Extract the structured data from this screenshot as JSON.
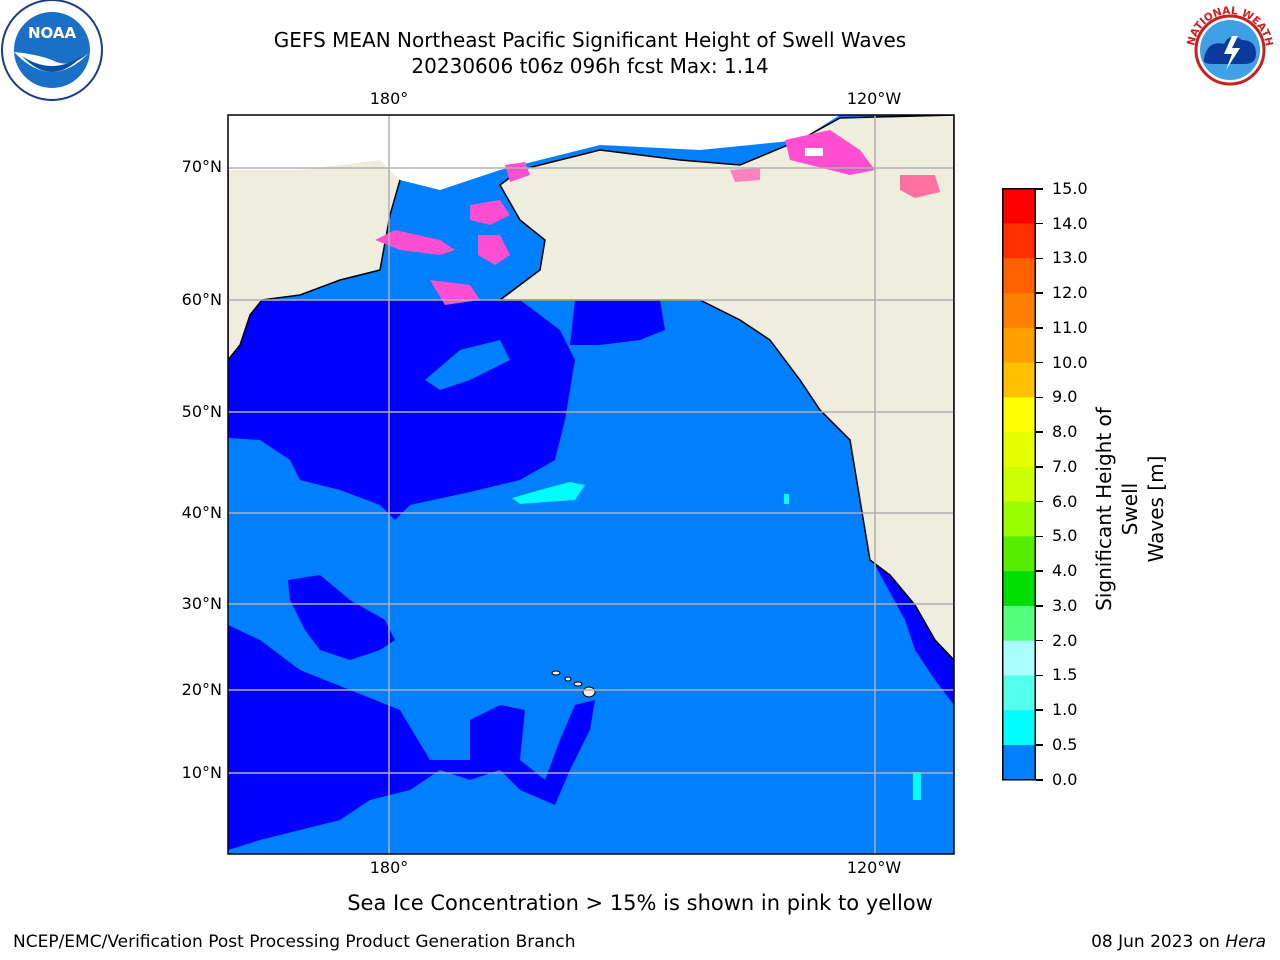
{
  "title_line1": "GEFS MEAN Northeast Pacific Significant Height of Swell Waves",
  "title_line2": "20230606 t06z 096h fcst   Max: 1.14",
  "lon_labels": [
    "180°",
    "120°W"
  ],
  "lat_labels": [
    "70°N",
    "60°N",
    "50°N",
    "40°N",
    "30°N",
    "20°N",
    "10°N"
  ],
  "colorbar": {
    "label": "Significant Height of Swell Waves [m]",
    "label_line1": "Significant Height of Swell",
    "label_line2": "Waves [m]",
    "ticks": [
      "15.0",
      "14.0",
      "13.0",
      "12.0",
      "11.0",
      "10.0",
      "9.0",
      "8.0",
      "7.0",
      "6.0",
      "5.0",
      "4.0",
      "3.0",
      "2.0",
      "1.5",
      "1.0",
      "0.5",
      "0.0"
    ],
    "colors": [
      "#ff0000",
      "#ff3000",
      "#ff6000",
      "#ff8000",
      "#ffa000",
      "#ffc000",
      "#ffff00",
      "#e6ff00",
      "#ccff00",
      "#99ff00",
      "#55ee00",
      "#00dd00",
      "#55ff80",
      "#aaffff",
      "#55ffee",
      "#00ffff",
      "#0080ff",
      "#0000ff"
    ]
  },
  "colors": {
    "land": "#efedde",
    "sea_low": "#0000ff",
    "sea_mid": "#0080ff",
    "sea_high": "#00ffff",
    "ice": "#ff4fd0",
    "grid": "#b0b0b0"
  },
  "note": "Sea Ice Concentration > 15% is shown in pink to yellow",
  "footer_left": "NCEP/EMC/Verification Post Processing Product Generation Branch",
  "footer_date": "08 Jun 2023 on ",
  "footer_machine": "Hera",
  "logos": {
    "left": "noaa-logo",
    "left_text": "NOAA",
    "right": "nws-logo",
    "right_text": "NATIONAL WEATHER SERVICE"
  }
}
